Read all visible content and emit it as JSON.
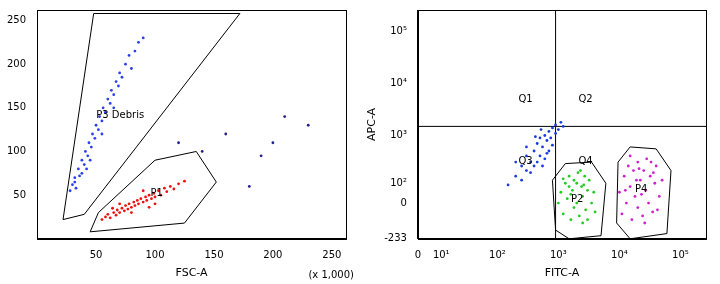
{
  "chart_data": [
    {
      "type": "scatter",
      "x_label": "FSC-A",
      "annotations": [
        "(x 1,000)"
      ],
      "xlim": [
        0,
        262
      ],
      "xticks": [
        50,
        100,
        150,
        200,
        250
      ],
      "ylim": [
        0,
        262
      ],
      "yticks": [
        50,
        100,
        150,
        200,
        250
      ],
      "grid": false,
      "series": [
        {
          "color": "#2a3ff0",
          "points": [
            [
              28,
              55
            ],
            [
              30,
              62
            ],
            [
              32,
              70
            ],
            [
              33,
              58
            ],
            [
              35,
              80
            ],
            [
              36,
              72
            ],
            [
              38,
              90
            ],
            [
              40,
              85
            ],
            [
              41,
              100
            ],
            [
              43,
              95
            ],
            [
              44,
              110
            ],
            [
              46,
              105
            ],
            [
              47,
              120
            ],
            [
              49,
              115
            ],
            [
              50,
              130
            ],
            [
              52,
              125
            ],
            [
              53,
              140
            ],
            [
              55,
              135
            ],
            [
              56,
              150
            ],
            [
              58,
              145
            ],
            [
              60,
              160
            ],
            [
              62,
              155
            ],
            [
              63,
              170
            ],
            [
              65,
              165
            ],
            [
              67,
              180
            ],
            [
              69,
              175
            ],
            [
              70,
              190
            ],
            [
              72,
              185
            ],
            [
              75,
              200
            ],
            [
              78,
              210
            ],
            [
              80,
              195
            ],
            [
              83,
              215
            ],
            [
              86,
              225
            ],
            [
              90,
              230
            ],
            [
              45,
              90
            ],
            [
              38,
              75
            ],
            [
              55,
              120
            ],
            [
              65,
              150
            ],
            [
              32,
              65
            ],
            [
              42,
              80
            ]
          ]
        },
        {
          "color": "#ee1111",
          "points": [
            [
              55,
              22
            ],
            [
              58,
              25
            ],
            [
              60,
              28
            ],
            [
              62,
              24
            ],
            [
              65,
              30
            ],
            [
              67,
              27
            ],
            [
              68,
              33
            ],
            [
              70,
              30
            ],
            [
              72,
              35
            ],
            [
              74,
              32
            ],
            [
              75,
              38
            ],
            [
              77,
              34
            ],
            [
              78,
              40
            ],
            [
              80,
              36
            ],
            [
              82,
              42
            ],
            [
              83,
              38
            ],
            [
              85,
              44
            ],
            [
              86,
              40
            ],
            [
              88,
              46
            ],
            [
              90,
              42
            ],
            [
              92,
              48
            ],
            [
              93,
              44
            ],
            [
              95,
              50
            ],
            [
              97,
              46
            ],
            [
              99,
              52
            ],
            [
              100,
              48
            ],
            [
              103,
              55
            ],
            [
              105,
              50
            ],
            [
              108,
              58
            ],
            [
              110,
              54
            ],
            [
              113,
              60
            ],
            [
              116,
              57
            ],
            [
              120,
              63
            ],
            [
              125,
              66
            ],
            [
              70,
              40
            ],
            [
              80,
              30
            ],
            [
              90,
              55
            ],
            [
              100,
              40
            ],
            [
              64,
              35
            ],
            [
              95,
              36
            ]
          ]
        },
        {
          "color": "#22228a",
          "points": [
            [
              140,
              100
            ],
            [
              160,
              120
            ],
            [
              190,
              95
            ],
            [
              200,
              110
            ],
            [
              210,
              140
            ],
            [
              180,
              60
            ],
            [
              120,
              110
            ],
            [
              230,
              130
            ]
          ]
        }
      ],
      "gates": [
        {
          "name": "P3 Debris",
          "color": "#000000",
          "points": [
            [
              22,
              22
            ],
            [
              48,
              258
            ],
            [
              172,
              258
            ],
            [
              40,
              28
            ]
          ]
        },
        {
          "name": "P1",
          "color": "#000000",
          "points": [
            [
              45,
              8
            ],
            [
              52,
              30
            ],
            [
              100,
              90
            ],
            [
              135,
              100
            ],
            [
              152,
              65
            ],
            [
              125,
              18
            ]
          ]
        }
      ]
    },
    {
      "type": "scatter",
      "x_label": "FITC-A",
      "y_label": "APC-A",
      "log": true,
      "xlim": [
        0,
        262144
      ],
      "xticks": [
        0,
        {
          "value": 10,
          "label": "10¹"
        },
        {
          "value": 100,
          "label": "10²"
        },
        {
          "value": 1000,
          "label": "10³"
        },
        {
          "value": 10000,
          "label": "10⁴"
        },
        {
          "value": 100000,
          "label": "10⁵"
        }
      ],
      "ylim": [
        -233,
        262144
      ],
      "yticks": [
        -233,
        0,
        {
          "value": 100,
          "label": "10²"
        },
        {
          "value": 1000,
          "label": "10³"
        },
        {
          "value": 10000,
          "label": "10⁴"
        },
        {
          "value": 100000,
          "label": "10⁵"
        }
      ],
      "grid": false,
      "series": [
        {
          "color": "#1a3bdd",
          "points": [
            [
              200,
              150
            ],
            [
              250,
              250
            ],
            [
              300,
              200
            ],
            [
              300,
              400
            ],
            [
              350,
              300
            ],
            [
              400,
              500
            ],
            [
              400,
              250
            ],
            [
              450,
              700
            ],
            [
              500,
              400
            ],
            [
              500,
              900
            ],
            [
              550,
              600
            ],
            [
              600,
              1000
            ],
            [
              600,
              350
            ],
            [
              650,
              800
            ],
            [
              700,
              1200
            ],
            [
              700,
              500
            ],
            [
              750,
              900
            ],
            [
              800,
              1400
            ],
            [
              800,
              650
            ],
            [
              900,
              1100
            ],
            [
              900,
              1600
            ],
            [
              1000,
              1300
            ],
            [
              1100,
              1800
            ],
            [
              250,
              120
            ],
            [
              350,
              180
            ],
            [
              450,
              300
            ],
            [
              550,
              250
            ],
            [
              650,
              450
            ],
            [
              1200,
              1500
            ],
            [
              300,
              600
            ],
            [
              200,
              300
            ],
            [
              420,
              950
            ],
            [
              520,
              1300
            ],
            [
              150,
              90
            ]
          ]
        },
        {
          "color": "#22cc22",
          "points": [
            [
              1000,
              0
            ],
            [
              1100,
              50
            ],
            [
              1200,
              -50
            ],
            [
              1300,
              100
            ],
            [
              1400,
              20
            ],
            [
              1500,
              150
            ],
            [
              1600,
              -80
            ],
            [
              1700,
              60
            ],
            [
              1800,
              120
            ],
            [
              2000,
              0
            ],
            [
              2100,
              180
            ],
            [
              2200,
              -60
            ],
            [
              2400,
              80
            ],
            [
              2500,
              30
            ],
            [
              2700,
              150
            ],
            [
              2800,
              -30
            ],
            [
              3000,
              60
            ],
            [
              3200,
              120
            ],
            [
              3500,
              0
            ],
            [
              3800,
              50
            ],
            [
              4000,
              -40
            ],
            [
              1500,
              80
            ],
            [
              2000,
              100
            ],
            [
              2500,
              -100
            ],
            [
              1800,
              -20
            ],
            [
              3000,
              -80
            ],
            [
              1200,
              130
            ],
            [
              2300,
              200
            ],
            [
              1600,
              40
            ],
            [
              2600,
              90
            ]
          ]
        },
        {
          "color": "#cc22cc",
          "points": [
            [
              10000,
              50
            ],
            [
              11000,
              -50
            ],
            [
              12000,
              150
            ],
            [
              13000,
              0
            ],
            [
              14000,
              250
            ],
            [
              15000,
              80
            ],
            [
              16000,
              -80
            ],
            [
              17000,
              200
            ],
            [
              18000,
              30
            ],
            [
              20000,
              300
            ],
            [
              20000,
              -20
            ],
            [
              22000,
              120
            ],
            [
              24000,
              -60
            ],
            [
              25000,
              200
            ],
            [
              27000,
              60
            ],
            [
              28000,
              350
            ],
            [
              30000,
              0
            ],
            [
              32000,
              150
            ],
            [
              35000,
              -40
            ],
            [
              38000,
              100
            ],
            [
              40000,
              250
            ],
            [
              45000,
              30
            ],
            [
              50000,
              120
            ],
            [
              15000,
              400
            ],
            [
              19000,
              120
            ],
            [
              23000,
              40
            ],
            [
              26000,
              -100
            ],
            [
              33000,
              300
            ],
            [
              42000,
              -30
            ],
            [
              12500,
              60
            ],
            [
              21000,
              220
            ],
            [
              36000,
              180
            ]
          ]
        }
      ],
      "gates": [
        {
          "name": "P2",
          "color": "#000000",
          "points": [
            [
              900,
              -150
            ],
            [
              800,
              120
            ],
            [
              1300,
              280
            ],
            [
              3500,
              300
            ],
            [
              6000,
              100
            ],
            [
              5000,
              -200
            ],
            [
              1500,
              -233
            ]
          ]
        },
        {
          "name": "P4",
          "color": "#000000",
          "points": [
            [
              9000,
              -100
            ],
            [
              9500,
              300
            ],
            [
              15000,
              600
            ],
            [
              40000,
              550
            ],
            [
              70000,
              200
            ],
            [
              60000,
              -180
            ],
            [
              15000,
              -233
            ]
          ]
        }
      ],
      "quadrants": {
        "x": 900,
        "y": 1500,
        "labels": [
          "Q1",
          "Q2",
          "Q3",
          "Q4"
        ]
      }
    }
  ]
}
